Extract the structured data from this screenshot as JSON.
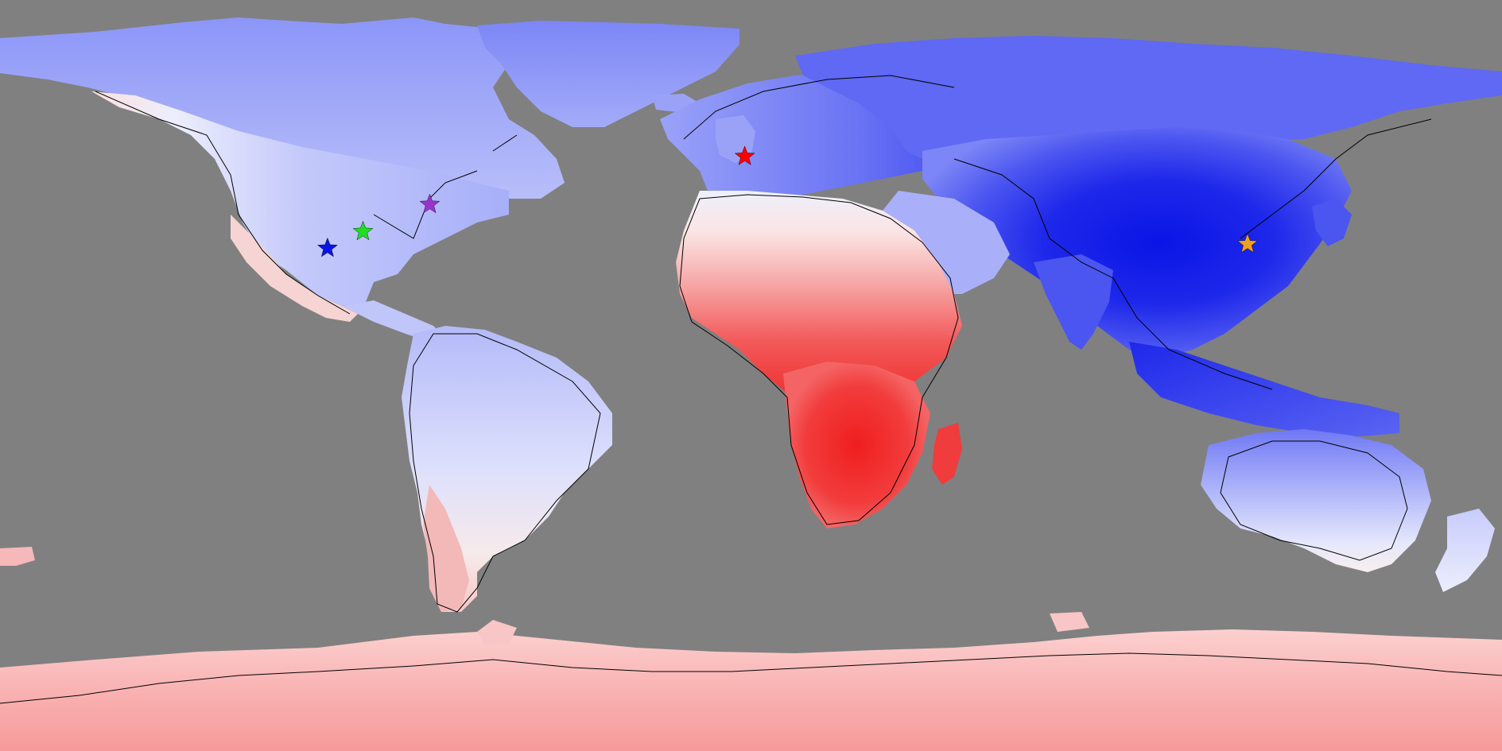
{
  "map": {
    "projection": "equirectangular",
    "colors": {
      "ocean": "#808080",
      "coastline": "#000000",
      "cold_strong": "#0a14e6",
      "cold_mid": "#4b55f0",
      "cold_light": "#8c96f8",
      "cold_pale": "#c8ccfb",
      "neutral": "#f4f4fc",
      "warm_pale": "#fbd7d7",
      "warm_light": "#f8a6a6",
      "warm_mid": "#f26a6a",
      "warm_strong": "#f02a2a"
    },
    "markers": [
      {
        "name": "united-kingdom-star",
        "lon": -1.5,
        "lat": 52.5,
        "color": "#ff0000"
      },
      {
        "name": "northeast-usa-star",
        "lon": -77.0,
        "lat": 41.0,
        "color": "#9933cc"
      },
      {
        "name": "central-usa-star",
        "lon": -93.0,
        "lat": 34.5,
        "color": "#22dd22"
      },
      {
        "name": "southwest-usa-star",
        "lon": -101.5,
        "lat": 30.5,
        "color": "#0a14e6"
      },
      {
        "name": "east-china-star",
        "lon": 119.0,
        "lat": 31.5,
        "color": "#f0a020"
      }
    ]
  }
}
